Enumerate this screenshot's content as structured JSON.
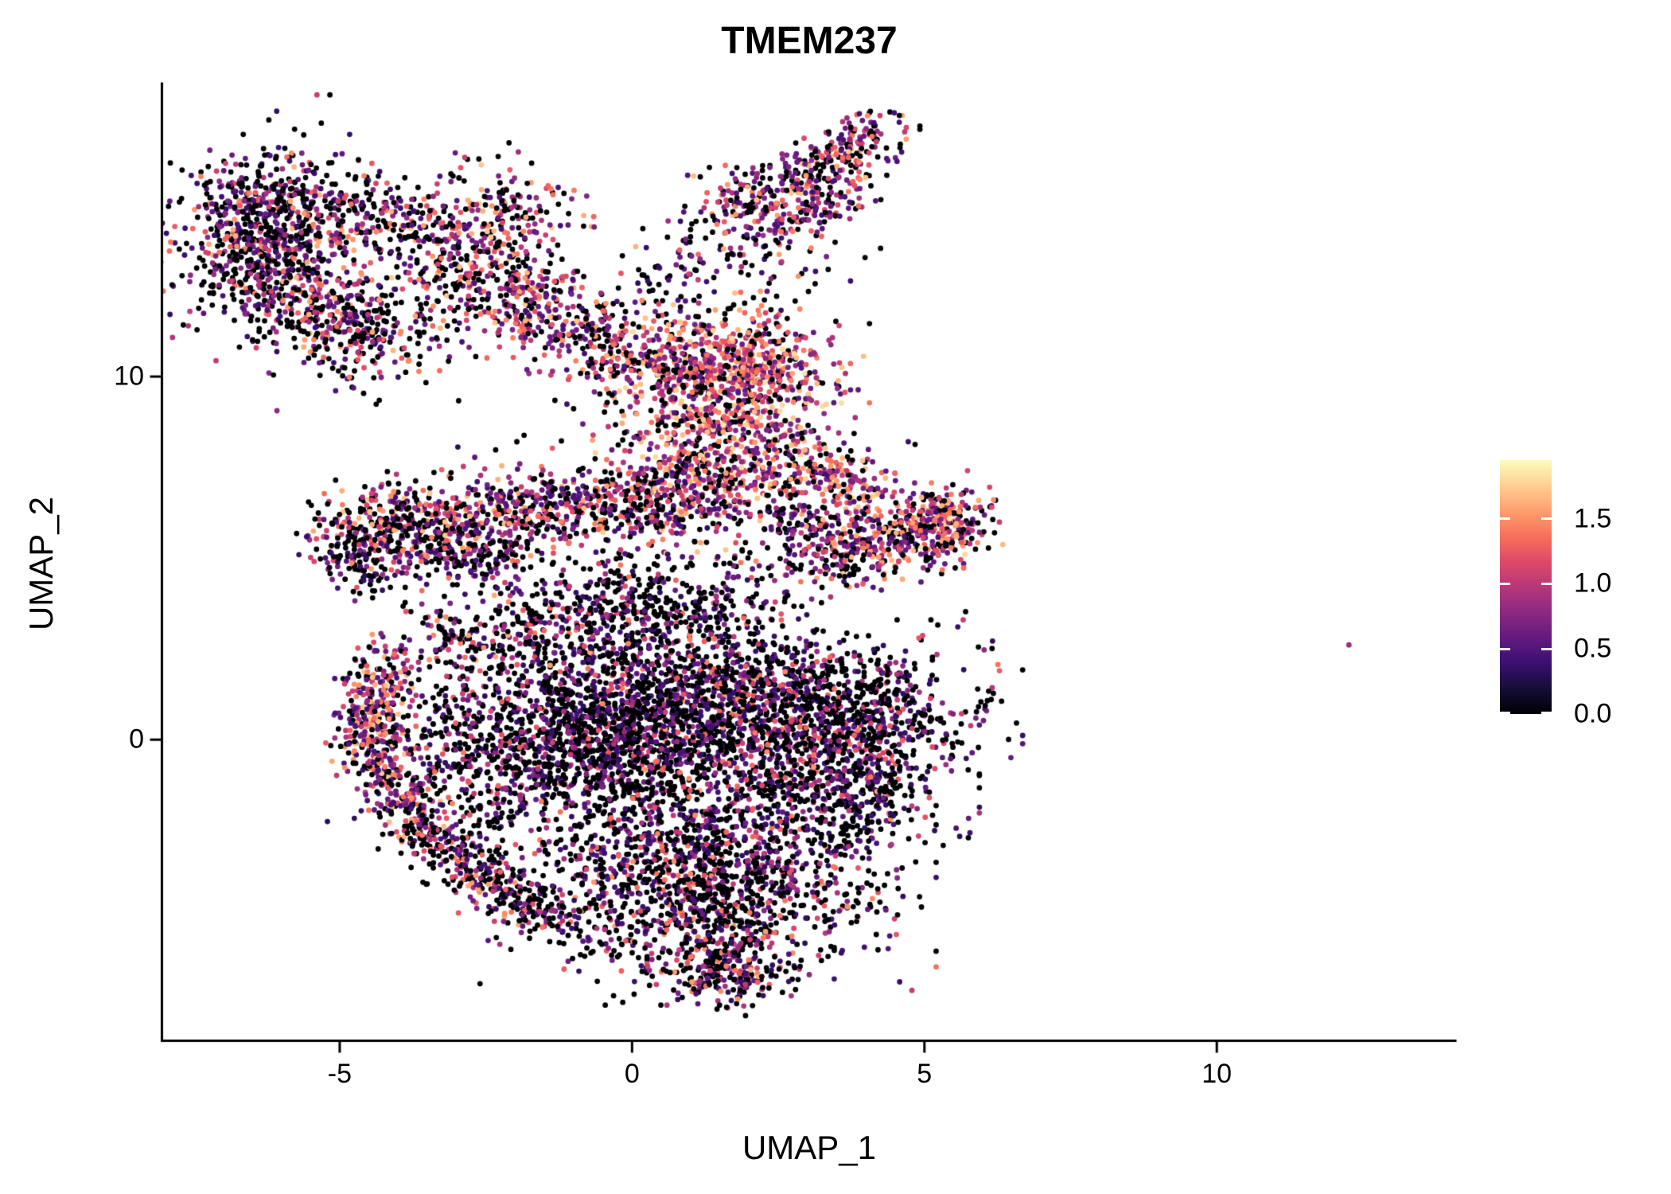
{
  "figure": {
    "background": "#ffffff"
  },
  "chart_data": {
    "type": "scatter",
    "title": "TMEM237",
    "xlabel": "UMAP_1",
    "ylabel": "UMAP_2",
    "xlim": [
      -8.02,
      14.08
    ],
    "ylim": [
      -8.26,
      18.07
    ],
    "grid": false,
    "axis_color": "#000000",
    "text_color": "#000000",
    "point_radius_px": 3.4,
    "x_ticks": [
      {
        "value": -5,
        "label": "-5"
      },
      {
        "value": 0,
        "label": "0"
      },
      {
        "value": 5,
        "label": "5"
      },
      {
        "value": 10,
        "label": "10"
      }
    ],
    "y_ticks": [
      {
        "value": 0,
        "label": "0"
      },
      {
        "value": 10,
        "label": "10"
      }
    ],
    "colorbar": {
      "position": "right",
      "domain": [
        0,
        1.95
      ],
      "ticks": [
        {
          "value": 0.0,
          "label": "0.0"
        },
        {
          "value": 0.5,
          "label": "0.5"
        },
        {
          "value": 1.0,
          "label": "1.0"
        },
        {
          "value": 1.5,
          "label": "1.5"
        }
      ]
    },
    "colormap": {
      "name": "magma",
      "stops": [
        "#000004",
        "#140e36",
        "#3b0f70",
        "#641a80",
        "#8c2981",
        "#b73779",
        "#de4968",
        "#f7705c",
        "#fe9f6d",
        "#fecf92",
        "#fcfdbf"
      ]
    },
    "heat_profiles": {
      "dark": {
        "p0": 0.56,
        "base": 0.3,
        "range": 1.1,
        "skew": 1.9
      },
      "middark": {
        "p0": 0.52,
        "base": 0.32,
        "range": 1.25,
        "skew": 1.7
      },
      "mid": {
        "p0": 0.45,
        "base": 0.35,
        "range": 1.3,
        "skew": 1.6
      },
      "warm": {
        "p0": 0.33,
        "base": 0.4,
        "range": 1.35,
        "skew": 1.3
      },
      "hot": {
        "p0": 0.22,
        "base": 0.5,
        "range": 1.35,
        "skew": 1.15
      }
    },
    "seed": 42,
    "total_points": 13681,
    "clusters": [
      {
        "name": "topleft-blob-core",
        "kind": "gauss",
        "cx": -6.2,
        "cy": 14.2,
        "sx": 0.75,
        "sy": 0.95,
        "n": 620,
        "heat": "mid"
      },
      {
        "name": "topleft-blob-extension",
        "kind": "seg",
        "x1": -6.4,
        "y1": 12.9,
        "x2": -4.15,
        "y2": 10.7,
        "jx": 0.55,
        "jy": 0.6,
        "n": 430,
        "heat": "mid"
      },
      {
        "name": "topleft-blob-halo",
        "kind": "gauss",
        "cx": -6.0,
        "cy": 13.6,
        "sx": 1.15,
        "sy": 1.6,
        "n": 160,
        "heat": "mid"
      },
      {
        "name": "top-trail",
        "kind": "seg",
        "x1": -4.9,
        "y1": 15.0,
        "x2": -3.3,
        "y2": 13.5,
        "jx": 0.4,
        "jy": 0.5,
        "n": 150,
        "heat": "mid"
      },
      {
        "name": "top-mid-band-upper",
        "kind": "gauss",
        "cx": -2.6,
        "cy": 14.2,
        "sx": 0.8,
        "sy": 0.9,
        "n": 280,
        "heat": "warm"
      },
      {
        "name": "top-mid-band-lower",
        "kind": "seg",
        "x1": -3.25,
        "y1": 12.95,
        "x2": 1.0,
        "y2": 9.9,
        "jx": 0.5,
        "jy": 0.65,
        "n": 620,
        "heat": "warm"
      },
      {
        "name": "topright-blob",
        "kind": "gauss",
        "cx": 2.0,
        "cy": 14.8,
        "sx": 0.45,
        "sy": 0.5,
        "n": 120,
        "heat": "warm"
      },
      {
        "name": "topright-chain",
        "kind": "seg",
        "x1": 2.6,
        "y1": 15.2,
        "x2": 4.3,
        "y2": 16.9,
        "jx": 0.35,
        "jy": 0.35,
        "n": 240,
        "heat": "warm"
      },
      {
        "name": "topright-hook",
        "kind": "seg",
        "x1": 2.4,
        "y1": 14.05,
        "x2": 4.0,
        "y2": 15.35,
        "jx": 0.28,
        "jy": 0.3,
        "n": 110,
        "heat": "warm"
      },
      {
        "name": "topright-below",
        "kind": "gauss",
        "cx": 2.3,
        "cy": 13.3,
        "sx": 0.75,
        "sy": 0.55,
        "n": 60,
        "heat": "mid"
      },
      {
        "name": "top-connector",
        "kind": "gauss",
        "cx": 0.85,
        "cy": 12.9,
        "sx": 0.6,
        "sy": 0.75,
        "n": 70,
        "heat": "dark"
      },
      {
        "name": "mid-stream-top",
        "kind": "gauss",
        "cx": 1.85,
        "cy": 10.4,
        "sx": 0.85,
        "sy": 0.75,
        "n": 520,
        "heat": "hot"
      },
      {
        "name": "mid-stream-mid",
        "kind": "gauss",
        "cx": 1.6,
        "cy": 8.5,
        "sx": 1.0,
        "sy": 0.95,
        "n": 560,
        "heat": "hot"
      },
      {
        "name": "mid-stream-lower",
        "kind": "seg",
        "x1": 1.1,
        "y1": 7.4,
        "x2": 0.8,
        "y2": 5.9,
        "jx": 0.8,
        "jy": 0.55,
        "n": 320,
        "heat": "warm"
      },
      {
        "name": "mid-stream-right",
        "kind": "gauss",
        "cx": 3.0,
        "cy": 6.7,
        "sx": 0.6,
        "sy": 0.7,
        "n": 140,
        "heat": "warm"
      },
      {
        "name": "stream-horn-link",
        "kind": "seg",
        "x1": 3.1,
        "y1": 7.7,
        "x2": 4.3,
        "y2": 6.6,
        "jx": 0.3,
        "jy": 0.3,
        "n": 90,
        "heat": "hot"
      },
      {
        "name": "left-band-main",
        "kind": "seg",
        "x1": -4.75,
        "y1": 6.0,
        "x2": 0.3,
        "y2": 6.55,
        "jx": 0.42,
        "jy": 0.5,
        "n": 680,
        "heat": "warm"
      },
      {
        "name": "left-band-lower",
        "kind": "seg",
        "x1": -5.1,
        "y1": 5.7,
        "x2": -2.1,
        "y2": 4.95,
        "jx": 0.4,
        "jy": 0.45,
        "n": 330,
        "heat": "mid"
      },
      {
        "name": "left-band-tail",
        "kind": "seg",
        "x1": -5.15,
        "y1": 5.1,
        "x2": -4.3,
        "y2": 4.3,
        "jx": 0.3,
        "jy": 0.35,
        "n": 70,
        "heat": "dark"
      },
      {
        "name": "right-horn",
        "kind": "seg",
        "x1": 2.95,
        "y1": 5.0,
        "x2": 5.5,
        "y2": 6.0,
        "jx": 0.45,
        "jy": 0.55,
        "n": 430,
        "heat": "warm"
      },
      {
        "name": "right-horn-tip",
        "kind": "gauss",
        "cx": 5.3,
        "cy": 5.9,
        "sx": 0.4,
        "sy": 0.45,
        "n": 170,
        "heat": "hot"
      },
      {
        "name": "central-upper-wedge",
        "kind": "gauss",
        "cx": 0.3,
        "cy": 3.6,
        "sx": 1.35,
        "sy": 0.85,
        "n": 520,
        "heat": "dark"
      },
      {
        "name": "central-upper-left",
        "kind": "gauss",
        "cx": -2.4,
        "cy": 2.9,
        "sx": 0.9,
        "sy": 0.55,
        "n": 200,
        "heat": "mid"
      },
      {
        "name": "central-left-lobe",
        "kind": "gauss",
        "cx": -0.7,
        "cy": 0.0,
        "sx": 1.3,
        "sy": 1.3,
        "n": 1550,
        "heat": "dark"
      },
      {
        "name": "central-right-lobe",
        "kind": "gauss",
        "cx": 3.3,
        "cy": 0.7,
        "sx": 1.3,
        "sy": 1.0,
        "n": 1050,
        "heat": "dark"
      },
      {
        "name": "central-bottom-lobe",
        "kind": "gauss",
        "cx": 1.3,
        "cy": -3.8,
        "sx": 1.5,
        "sy": 1.35,
        "n": 1550,
        "heat": "middark"
      },
      {
        "name": "central-bridge",
        "kind": "gauss",
        "cx": 1.2,
        "cy": 1.2,
        "sx": 1.0,
        "sy": 1.0,
        "n": 650,
        "heat": "mid"
      },
      {
        "name": "central-right-lower",
        "kind": "gauss",
        "cx": 3.6,
        "cy": -1.5,
        "sx": 0.9,
        "sy": 0.8,
        "n": 420,
        "heat": "dark"
      },
      {
        "name": "central-bottom-tip",
        "kind": "gauss",
        "cx": 1.6,
        "cy": -6.3,
        "sx": 0.55,
        "sy": 0.5,
        "n": 230,
        "heat": "mid"
      },
      {
        "name": "crescent-top",
        "kind": "seg",
        "x1": -4.2,
        "y1": 2.1,
        "x2": -4.55,
        "y2": 0.2,
        "jx": 0.32,
        "jy": 0.4,
        "n": 240,
        "heat": "warm"
      },
      {
        "name": "crescent-mid",
        "kind": "seg",
        "x1": -4.55,
        "y1": 0.2,
        "x2": -3.6,
        "y2": -2.5,
        "jx": 0.32,
        "jy": 0.4,
        "n": 290,
        "heat": "warm"
      },
      {
        "name": "crescent-bottom",
        "kind": "seg",
        "x1": -3.6,
        "y1": -2.5,
        "x2": -1.4,
        "y2": -5.0,
        "jx": 0.3,
        "jy": 0.4,
        "n": 330,
        "heat": "mid"
      },
      {
        "name": "crescent-inner-fill",
        "kind": "gauss",
        "cx": -3.0,
        "cy": -0.6,
        "sx": 0.85,
        "sy": 1.3,
        "n": 220,
        "heat": "dark"
      },
      {
        "name": "sparse-mid-noise",
        "kind": "gauss",
        "cx": 0.4,
        "cy": 6.3,
        "sx": 2.3,
        "sy": 1.4,
        "n": 130,
        "heat": "dark"
      },
      {
        "name": "sparse-below-topleft",
        "kind": "gauss",
        "cx": -5.0,
        "cy": 11.4,
        "sx": 1.1,
        "sy": 0.9,
        "n": 70,
        "heat": "mid"
      },
      {
        "name": "sparse-upper-gap",
        "kind": "gauss",
        "cx": -1.5,
        "cy": 12.1,
        "sx": 1.6,
        "sy": 1.1,
        "n": 60,
        "heat": "mid"
      },
      {
        "name": "right-outlier",
        "kind": "point",
        "cx": 12.26,
        "cy": 2.61,
        "v": 0.85,
        "n": 1,
        "heat": "mid"
      }
    ]
  }
}
